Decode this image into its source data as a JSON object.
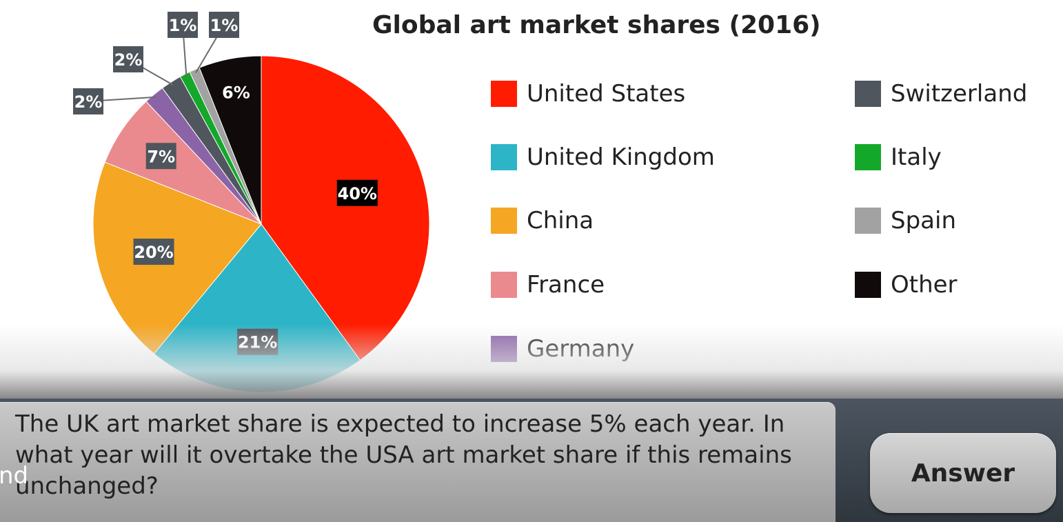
{
  "colors": {
    "United States": "#ff1c00",
    "United Kingdom": "#2db4c6",
    "China": "#f5a623",
    "France": "#ea8a8f",
    "Germany": "#8b64a8",
    "Switzerland": "#50565e",
    "Italy": "#14a82a",
    "Spain": "#a2a2a2",
    "Other": "#110a0a",
    "label_bg": "#3b3b3b",
    "callout_bg": "#4f555c"
  },
  "chart_data": {
    "type": "pie",
    "title": "Global art market shares (2016)",
    "slices": [
      {
        "name": "United States",
        "value": 40,
        "label": "40%"
      },
      {
        "name": "United Kingdom",
        "value": 21,
        "label": "21%"
      },
      {
        "name": "China",
        "value": 20,
        "label": "20%"
      },
      {
        "name": "France",
        "value": 7,
        "label": "7%"
      },
      {
        "name": "Germany",
        "value": 2,
        "label": "2%"
      },
      {
        "name": "Switzerland",
        "value": 2,
        "label": "2%"
      },
      {
        "name": "Italy",
        "value": 1,
        "label": "1%"
      },
      {
        "name": "Spain",
        "value": 1,
        "label": "1%"
      },
      {
        "name": "Other",
        "value": 6,
        "label": "6%"
      }
    ],
    "legend_placement": "right, two columns"
  },
  "legend": {
    "col1": [
      "United States",
      "United Kingdom",
      "China",
      "France",
      "Germany"
    ],
    "col2": [
      "Switzerland",
      "Italy",
      "Spain",
      "Other"
    ]
  },
  "question": {
    "text": "The UK art market share is expected to increase 5% each year. In what year will it overtake the USA art market share if this remains unchanged?"
  },
  "answer_button": {
    "label": "Answer"
  },
  "cut_off_text": "nd"
}
